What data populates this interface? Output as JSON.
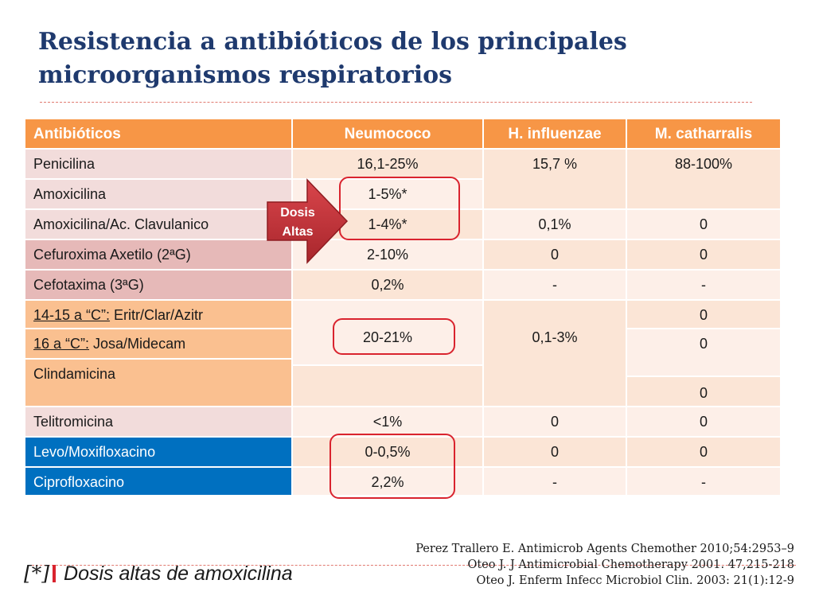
{
  "slide": {
    "title_line1": "Resistencia a antibióticos de los principales",
    "title_line2": "microorganismos respiratorios"
  },
  "table": {
    "headers": [
      "Antibióticos",
      "Neumococo",
      "H. influenzae",
      "M. catharralis"
    ],
    "antibiotics": {
      "penicilina": "Penicilina",
      "amoxicilina": "Amoxicilina",
      "amox_clav": "Amoxicilina/Ac. Clavulanico",
      "cefuroxima": "Cefuroxima Axetilo (2ªG)",
      "cefotaxima": "Cefotaxima (3ªG)",
      "macro_1415_u": "14-15 a “C”:",
      "macro_1415_rest": " Eritr/Clar/Azitr",
      "macro_16_u": "16 a “C”:",
      "macro_16_rest": " Josa/Midecam",
      "clindamicina": "Clindamicina",
      "telitromicina": "Telitromicina",
      "levo_moxi": "Levo/Moxifloxacino",
      "cipro": "Ciprofloxacino"
    },
    "neumococo": {
      "penicilina": "16,1-25%",
      "amoxicilina": "1-5%*",
      "amox_clav": "1-4%*",
      "cefuroxima": "2-10%",
      "cefotaxima": "0,2%",
      "macrolidos": "20-21%",
      "telitromicina": "<1%",
      "levo_moxi": "0-0,5%",
      "cipro": "2,2%"
    },
    "h_influenzae": {
      "penicilina_amox": "15,7 %",
      "amox_clav": "0,1%",
      "cefuroxima": "0",
      "cefotaxima": "-",
      "macro_clinda": "0,1-3%",
      "telitromicina": "0",
      "levo_moxi": "0",
      "cipro": "-"
    },
    "m_catharralis": {
      "penicilina_amox": "88-100%",
      "amox_clav": "0",
      "cefuroxima": "0",
      "cefotaxima": "-",
      "macro_1415": "0",
      "macro_16": "0",
      "clindamicina": "0",
      "telitromicina": "0",
      "levo_moxi": "0",
      "cipro": "-"
    }
  },
  "callout": {
    "line1": "Dosis",
    "line2": "Altas"
  },
  "footnote": {
    "mark": "[*]",
    "text": "Dosis altas de amoxicilina"
  },
  "references": [
    "Perez Trallero E. Antimicrob Agents Chemother 2010;54:2953–9",
    "Oteo J.  J Antimicrobial Chemotherapy 2001. 47,215-218",
    "Oteo J. Enferm Infecc Microbiol Clin. 2003: 21(1):12-9"
  ],
  "colors": {
    "title": "#1f3a6e",
    "header": "#f79646",
    "highlight_box": "#d9232e",
    "arrow": "#c0343b",
    "quinolone_row": "#0070c0"
  }
}
